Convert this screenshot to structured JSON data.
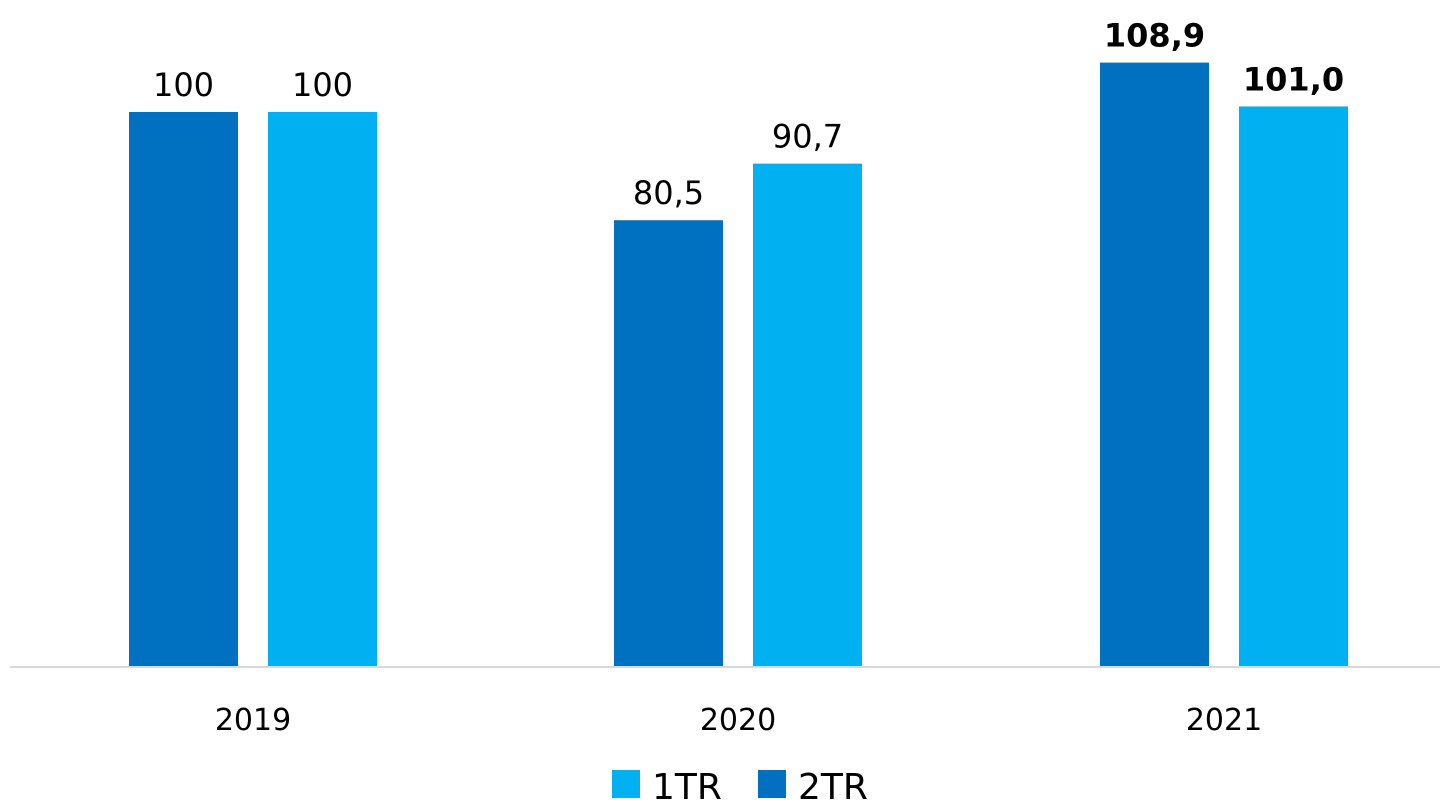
{
  "chart_data": {
    "type": "bar",
    "categories": [
      "2019",
      "2020",
      "2021"
    ],
    "series": [
      {
        "name": "2TR",
        "color": "#0070C0",
        "values": [
          100,
          80.5,
          108.9
        ],
        "labels": [
          "100",
          "80,5",
          "108,9"
        ]
      },
      {
        "name": "1TR",
        "color": "#00B0F0",
        "values": [
          100,
          90.7,
          101.0
        ],
        "labels": [
          "100",
          "90,7",
          "101,0"
        ]
      }
    ],
    "bold_category": "2021",
    "legend_order": [
      "1TR",
      "2TR"
    ],
    "legend_position": "bottom",
    "ylim": [
      0,
      110
    ],
    "grid": false,
    "title": "",
    "xlabel": "",
    "ylabel": ""
  }
}
